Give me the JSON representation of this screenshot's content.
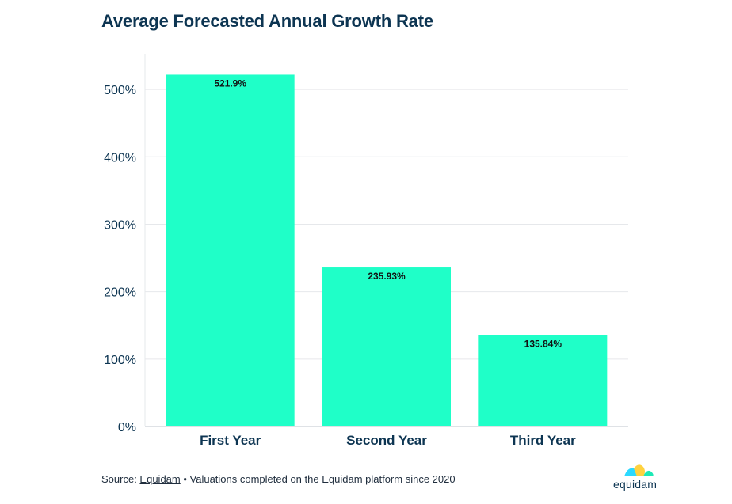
{
  "title": "Average Forecasted Annual Growth Rate",
  "footer": {
    "prefix": "Source: ",
    "link": "Equidam",
    "suffix": " • Valuations completed on the Equidam platform since 2020"
  },
  "logo": {
    "text": "equidam",
    "colors": [
      "#2bd9ff",
      "#ffd23f",
      "#1de9b6"
    ]
  },
  "chart_data": {
    "type": "bar",
    "title": "Average Forecasted Annual Growth Rate",
    "categories": [
      "First Year",
      "Second Year",
      "Third Year"
    ],
    "values": [
      521.9,
      235.93,
      135.84
    ],
    "data_labels": [
      "521.9%",
      "235.93%",
      "135.84%"
    ],
    "ylim": [
      0,
      560
    ],
    "yticks": [
      0,
      100,
      200,
      300,
      400,
      500
    ],
    "ytick_labels": [
      "0%",
      "100%",
      "200%",
      "300%",
      "400%",
      "500%"
    ],
    "grid": true,
    "bar_color": "#1fffc8",
    "axis_label_color": "#0d3552",
    "legend": "none"
  }
}
